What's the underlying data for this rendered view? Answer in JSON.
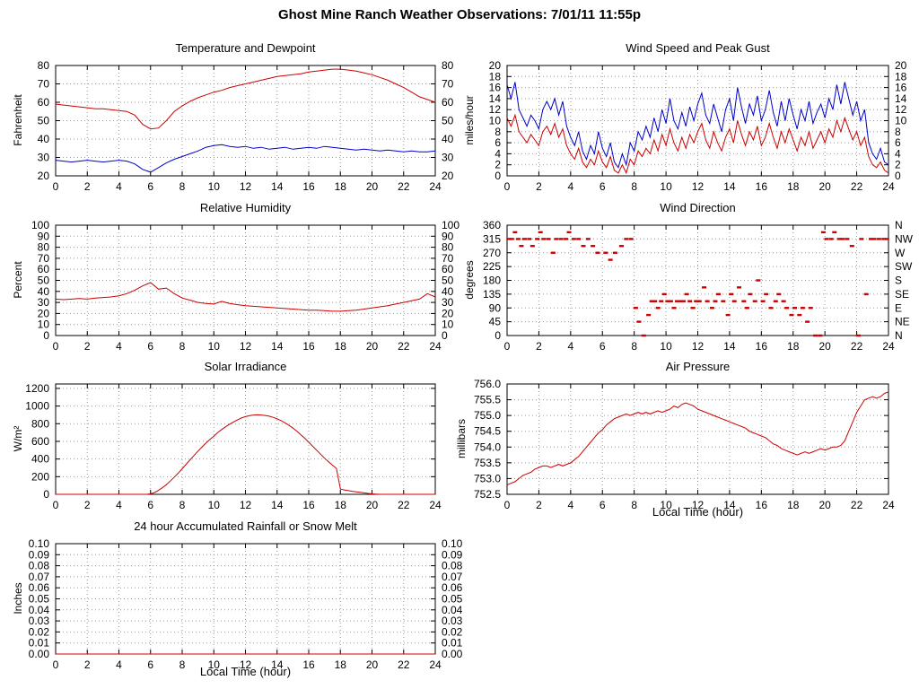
{
  "page": {
    "title": "Ghost Mine Ranch Weather Observations: 7/01/11 11:55p"
  },
  "colors": {
    "red": "#cc0000",
    "blue": "#0000cc",
    "grid": "#999999",
    "axis": "#000000"
  },
  "chart_data": [
    {
      "type": "line",
      "title": "Temperature and Dewpoint",
      "ylabel": "Fahrenheit",
      "xlim": [
        0,
        24
      ],
      "xtick_step": 2,
      "ylim": [
        20,
        80
      ],
      "ytick_step": 10,
      "ydecimals": 0,
      "right": "mirror",
      "series": [
        {
          "name": "Temperature",
          "color": "#cc0000",
          "xstep": 0.5,
          "values": [
            59,
            58.5,
            58,
            57.5,
            57,
            56.5,
            56.5,
            56,
            55.5,
            55,
            53,
            48,
            45.5,
            46,
            50,
            55,
            58,
            60.5,
            62.5,
            64,
            65.5,
            66.5,
            68,
            69,
            70,
            71,
            72,
            73,
            74,
            74.5,
            75,
            75.5,
            76.5,
            77,
            77.5,
            78,
            78,
            77.5,
            77,
            76,
            75,
            73.5,
            72,
            70,
            68,
            65.5,
            63,
            61.5,
            60
          ]
        },
        {
          "name": "Dewpoint",
          "color": "#0000cc",
          "xstep": 0.5,
          "values": [
            28.5,
            28,
            27.5,
            28,
            28.5,
            28,
            27.5,
            28,
            28.5,
            28,
            26.5,
            23.5,
            22,
            24.5,
            27,
            29,
            30.5,
            32,
            33.5,
            35.5,
            36.5,
            37,
            36,
            35.5,
            36,
            35,
            35.5,
            34.5,
            35,
            35.5,
            34.5,
            35,
            35.5,
            35,
            36,
            35.5,
            35,
            34.5,
            34,
            34.5,
            34,
            33.5,
            34,
            33.5,
            33,
            33.5,
            33,
            33,
            33.5
          ]
        }
      ]
    },
    {
      "type": "line",
      "title": "Wind Speed and Peak Gust",
      "ylabel": "miles/hour",
      "xlim": [
        0,
        24
      ],
      "xtick_step": 2,
      "ylim": [
        0,
        20
      ],
      "ytick_step": 2,
      "ydecimals": 0,
      "right": "mirror",
      "series": [
        {
          "name": "Wind Speed",
          "color": "#cc0000",
          "xstep": 0.25,
          "values": [
            10.5,
            9,
            11,
            8,
            7,
            6,
            7.5,
            6.5,
            5.5,
            8,
            9,
            7.5,
            9.5,
            7,
            8.5,
            5.5,
            4,
            3,
            5,
            2.5,
            1.5,
            3,
            2,
            4.5,
            2.5,
            1.5,
            3.5,
            1,
            0.5,
            2,
            0.5,
            3,
            2,
            4.5,
            3.5,
            5,
            4,
            6.5,
            4.5,
            7.5,
            5.5,
            8.5,
            6,
            4.5,
            7,
            5,
            7.5,
            6,
            8,
            9.5,
            6.5,
            5,
            8,
            6,
            4.5,
            7,
            8.5,
            6,
            10,
            7.5,
            5.5,
            8,
            6.5,
            9,
            5.5,
            7,
            9.5,
            7,
            5,
            8,
            6,
            8.5,
            6.5,
            4.5,
            7,
            5.5,
            8,
            5,
            6.5,
            8,
            6,
            8.5,
            7,
            10,
            8,
            10.5,
            8.5,
            6.5,
            8,
            5.5,
            7,
            3.5,
            2,
            1.5,
            2.5,
            1,
            0.5
          ]
        },
        {
          "name": "Peak Gust",
          "color": "#0000cc",
          "xstep": 0.25,
          "values": [
            16.5,
            14,
            17,
            12,
            10.5,
            9,
            11,
            10,
            8.5,
            12,
            13.5,
            12,
            14,
            11,
            13.5,
            9,
            7,
            5.5,
            8,
            4.5,
            3,
            5.5,
            4,
            8,
            5,
            3.5,
            6,
            2.5,
            1.5,
            4,
            2,
            6,
            4.5,
            8,
            6.5,
            9,
            7,
            10.5,
            8,
            12,
            9.5,
            14,
            10,
            8.5,
            11.5,
            9,
            12.5,
            10,
            13,
            15,
            11,
            9.5,
            13,
            10.5,
            8,
            12,
            14,
            10,
            16,
            12.5,
            9.5,
            13,
            11,
            14.5,
            10,
            12,
            15.5,
            11.5,
            9,
            13.5,
            10,
            14,
            11,
            8.5,
            12,
            10,
            13.5,
            9.5,
            11.5,
            13,
            10.5,
            14,
            12,
            16.5,
            13,
            17,
            14,
            11,
            13.5,
            10,
            12,
            6,
            4,
            3,
            5,
            2.5,
            2
          ]
        }
      ]
    },
    {
      "type": "line",
      "title": "Relative Humidity",
      "ylabel": "Percent",
      "xlim": [
        0,
        24
      ],
      "xtick_step": 2,
      "ylim": [
        0,
        100
      ],
      "ytick_step": 10,
      "ydecimals": 0,
      "right": "mirror",
      "series": [
        {
          "name": "Relative Humidity",
          "color": "#cc0000",
          "xstep": 0.5,
          "values": [
            33,
            32.5,
            33,
            33.5,
            33,
            34,
            34.5,
            35,
            36,
            38,
            41,
            45,
            48,
            42,
            43,
            38,
            34,
            32,
            30,
            29,
            28.5,
            31,
            29,
            28,
            27,
            26.5,
            26,
            25.5,
            25,
            24.5,
            24,
            23.5,
            23,
            23,
            22.5,
            22,
            22,
            22.5,
            23,
            24,
            25,
            26,
            27,
            28.5,
            30,
            31.5,
            33,
            38,
            35
          ]
        }
      ]
    },
    {
      "type": "scatter",
      "title": "Wind Direction",
      "ylabel": "degrees",
      "xlim": [
        0,
        24
      ],
      "xtick_step": 2,
      "ylim": [
        0,
        360
      ],
      "ytick_step": 45,
      "ydecimals": 0,
      "right": "labels",
      "right_labels": [
        "N",
        "NE",
        "E",
        "SE",
        "S",
        "SW",
        "W",
        "NW",
        "N"
      ],
      "color": "#cc0000",
      "points": [
        [
          0.1,
          315
        ],
        [
          0.3,
          315
        ],
        [
          0.5,
          337
        ],
        [
          0.7,
          315
        ],
        [
          0.9,
          292
        ],
        [
          1.1,
          315
        ],
        [
          1.4,
          315
        ],
        [
          1.6,
          292
        ],
        [
          1.9,
          315
        ],
        [
          2.1,
          337
        ],
        [
          2.3,
          315
        ],
        [
          2.6,
          315
        ],
        [
          2.9,
          270
        ],
        [
          3.1,
          315
        ],
        [
          3.4,
          315
        ],
        [
          3.7,
          315
        ],
        [
          3.9,
          337
        ],
        [
          4.2,
          315
        ],
        [
          4.5,
          315
        ],
        [
          4.8,
          292
        ],
        [
          5.1,
          315
        ],
        [
          5.4,
          292
        ],
        [
          5.7,
          270
        ],
        [
          6.2,
          270
        ],
        [
          6.5,
          247
        ],
        [
          6.8,
          270
        ],
        [
          7.2,
          292
        ],
        [
          7.5,
          315
        ],
        [
          7.8,
          315
        ],
        [
          8.1,
          90
        ],
        [
          8.3,
          45
        ],
        [
          8.6,
          0
        ],
        [
          8.9,
          67
        ],
        [
          9.1,
          112
        ],
        [
          9.3,
          112
        ],
        [
          9.5,
          90
        ],
        [
          9.7,
          112
        ],
        [
          9.9,
          135
        ],
        [
          10.1,
          112
        ],
        [
          10.3,
          112
        ],
        [
          10.5,
          90
        ],
        [
          10.7,
          112
        ],
        [
          10.9,
          112
        ],
        [
          11.1,
          112
        ],
        [
          11.3,
          135
        ],
        [
          11.5,
          112
        ],
        [
          11.7,
          90
        ],
        [
          11.9,
          112
        ],
        [
          12.1,
          112
        ],
        [
          12.4,
          157
        ],
        [
          12.6,
          112
        ],
        [
          12.9,
          90
        ],
        [
          13.1,
          112
        ],
        [
          13.3,
          135
        ],
        [
          13.6,
          112
        ],
        [
          13.9,
          67
        ],
        [
          14.1,
          135
        ],
        [
          14.3,
          112
        ],
        [
          14.6,
          157
        ],
        [
          14.9,
          112
        ],
        [
          15.1,
          90
        ],
        [
          15.3,
          135
        ],
        [
          15.6,
          112
        ],
        [
          15.8,
          180
        ],
        [
          16.1,
          112
        ],
        [
          16.3,
          135
        ],
        [
          16.6,
          90
        ],
        [
          16.9,
          112
        ],
        [
          17.1,
          135
        ],
        [
          17.4,
          112
        ],
        [
          17.6,
          90
        ],
        [
          17.9,
          67
        ],
        [
          18.1,
          90
        ],
        [
          18.4,
          67
        ],
        [
          18.6,
          90
        ],
        [
          18.9,
          45
        ],
        [
          19.1,
          90
        ],
        [
          19.4,
          0
        ],
        [
          19.7,
          0
        ],
        [
          19.9,
          337
        ],
        [
          20.1,
          315
        ],
        [
          20.4,
          315
        ],
        [
          20.6,
          337
        ],
        [
          20.9,
          315
        ],
        [
          21.1,
          315
        ],
        [
          21.4,
          315
        ],
        [
          21.7,
          292
        ],
        [
          22.1,
          0
        ],
        [
          22.3,
          315
        ],
        [
          22.6,
          135
        ],
        [
          22.9,
          315
        ],
        [
          23.1,
          315
        ],
        [
          23.4,
          315
        ],
        [
          23.7,
          315
        ],
        [
          23.9,
          315
        ]
      ]
    },
    {
      "type": "line",
      "title": "Solar Irradiance",
      "ylabel": "W/m²",
      "xlim": [
        0,
        24
      ],
      "xtick_step": 2,
      "ylim": [
        0,
        1250
      ],
      "ytick_step": 200,
      "ydecimals": 0,
      "right": "ticks",
      "series": [
        {
          "name": "Solar Irradiance",
          "color": "#cc0000",
          "xstep": 0.25,
          "values": [
            0,
            0,
            0,
            0,
            0,
            0,
            0,
            0,
            0,
            0,
            0,
            0,
            0,
            0,
            0,
            0,
            0,
            0,
            0,
            0,
            0,
            0,
            0,
            0,
            5,
            20,
            45,
            75,
            110,
            150,
            195,
            240,
            290,
            340,
            390,
            440,
            490,
            535,
            580,
            620,
            660,
            700,
            735,
            765,
            795,
            820,
            845,
            865,
            880,
            890,
            898,
            900,
            898,
            893,
            885,
            872,
            855,
            835,
            810,
            782,
            750,
            715,
            675,
            635,
            590,
            545,
            500,
            455,
            410,
            370,
            330,
            295,
            60,
            50,
            42,
            35,
            28,
            22,
            16,
            10,
            5,
            2,
            0,
            0,
            0,
            0,
            0,
            0,
            0,
            0,
            0,
            0,
            0,
            0,
            0,
            0,
            0
          ]
        }
      ]
    },
    {
      "type": "line",
      "title": "Air Pressure",
      "ylabel": "millibars",
      "xlabel": "Local Time (hour)",
      "xlim": [
        0,
        24
      ],
      "xtick_step": 2,
      "ylim": [
        752.5,
        756.0
      ],
      "ytick_step": 0.5,
      "ydecimals": 1,
      "right": "ticks",
      "series": [
        {
          "name": "Air Pressure",
          "color": "#cc0000",
          "xstep": 0.25,
          "values": [
            752.8,
            752.85,
            752.9,
            753.0,
            753.1,
            753.15,
            753.2,
            753.3,
            753.35,
            753.4,
            753.4,
            753.35,
            753.4,
            753.45,
            753.4,
            753.45,
            753.5,
            753.6,
            753.7,
            753.85,
            754.0,
            754.15,
            754.3,
            754.45,
            754.55,
            754.7,
            754.8,
            754.9,
            754.95,
            755.0,
            755.05,
            755.0,
            755.05,
            755.1,
            755.05,
            755.1,
            755.05,
            755.1,
            755.15,
            755.1,
            755.15,
            755.2,
            755.3,
            755.25,
            755.35,
            755.4,
            755.35,
            755.3,
            755.2,
            755.15,
            755.1,
            755.05,
            755.0,
            754.95,
            754.9,
            754.85,
            754.8,
            754.75,
            754.7,
            754.65,
            754.6,
            754.5,
            754.45,
            754.4,
            754.35,
            754.3,
            754.2,
            754.1,
            754.05,
            753.95,
            753.9,
            753.85,
            753.8,
            753.75,
            753.8,
            753.85,
            753.8,
            753.85,
            753.9,
            753.95,
            753.9,
            753.95,
            754.0,
            754.0,
            754.05,
            754.2,
            754.5,
            754.8,
            755.1,
            755.3,
            755.5,
            755.55,
            755.6,
            755.55,
            755.6,
            755.7,
            755.75
          ]
        }
      ]
    },
    {
      "type": "line",
      "title": "24 hour Accumulated Rainfall or Snow Melt",
      "ylabel": "Inches",
      "xlabel": "Local Time (hour)",
      "xlim": [
        0,
        24
      ],
      "xtick_step": 2,
      "ylim": [
        0,
        0.1
      ],
      "ytick_step": 0.01,
      "ydecimals": 2,
      "right": "mirror",
      "series": [
        {
          "name": "Rainfall",
          "color": "#cc0000",
          "xstep": 12,
          "values": [
            0,
            0,
            0
          ]
        }
      ]
    }
  ]
}
